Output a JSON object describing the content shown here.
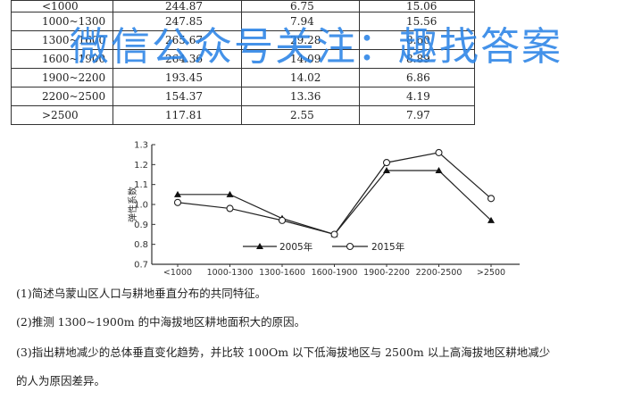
{
  "table": {
    "rows": [
      [
        "<1000",
        "244.87",
        "6.75",
        "15.06"
      ],
      [
        "1000~1300",
        "247.85",
        "7.94",
        "15.56"
      ],
      [
        "1300~1600",
        "265.67",
        "29.28",
        "8.60"
      ],
      [
        "1600~1900",
        "264.36",
        "14.09",
        "8.89"
      ],
      [
        "1900~2200",
        "193.45",
        "14.02",
        "6.86"
      ],
      [
        "2200~2500",
        "154.37",
        "13.36",
        "4.19"
      ],
      [
        ">2500",
        "117.81",
        "2.55",
        "7.97"
      ]
    ]
  },
  "watermark": "微信公众号关注：趣找答案",
  "chart_data": {
    "type": "line",
    "categories": [
      "<1000",
      "1000-1300",
      "1300-1600",
      "1600-1900",
      "1900-2200",
      "2200-2500",
      ">2500"
    ],
    "series": [
      {
        "name": "2005年",
        "values": [
          1.05,
          1.05,
          0.93,
          0.85,
          1.17,
          1.17,
          0.92
        ],
        "marker": "triangle"
      },
      {
        "name": "2015年",
        "values": [
          1.01,
          0.98,
          0.92,
          0.85,
          1.21,
          1.26,
          1.03
        ],
        "marker": "circle"
      }
    ],
    "ylabel": "弹性系数",
    "ylim": [
      0.7,
      1.3
    ],
    "yticks": [
      "1.3",
      "1.2",
      "1.1",
      "1.0",
      "0.9",
      "0.8",
      "0.7"
    ],
    "grid": false,
    "legend": "inside-bottom"
  },
  "questions": [
    "(1)简述乌蒙山区人口与耕地垂直分布的共同特征。",
    "(2)推测 1300~1900m 的中海拔地区耕地面积大的原因。",
    "(3)指出耕地减少的总体垂直变化趋势，并比较 100Om 以下低海拔地区与 2500m 以上高海拔地区耕地减少",
    "的人为原因差异。"
  ]
}
